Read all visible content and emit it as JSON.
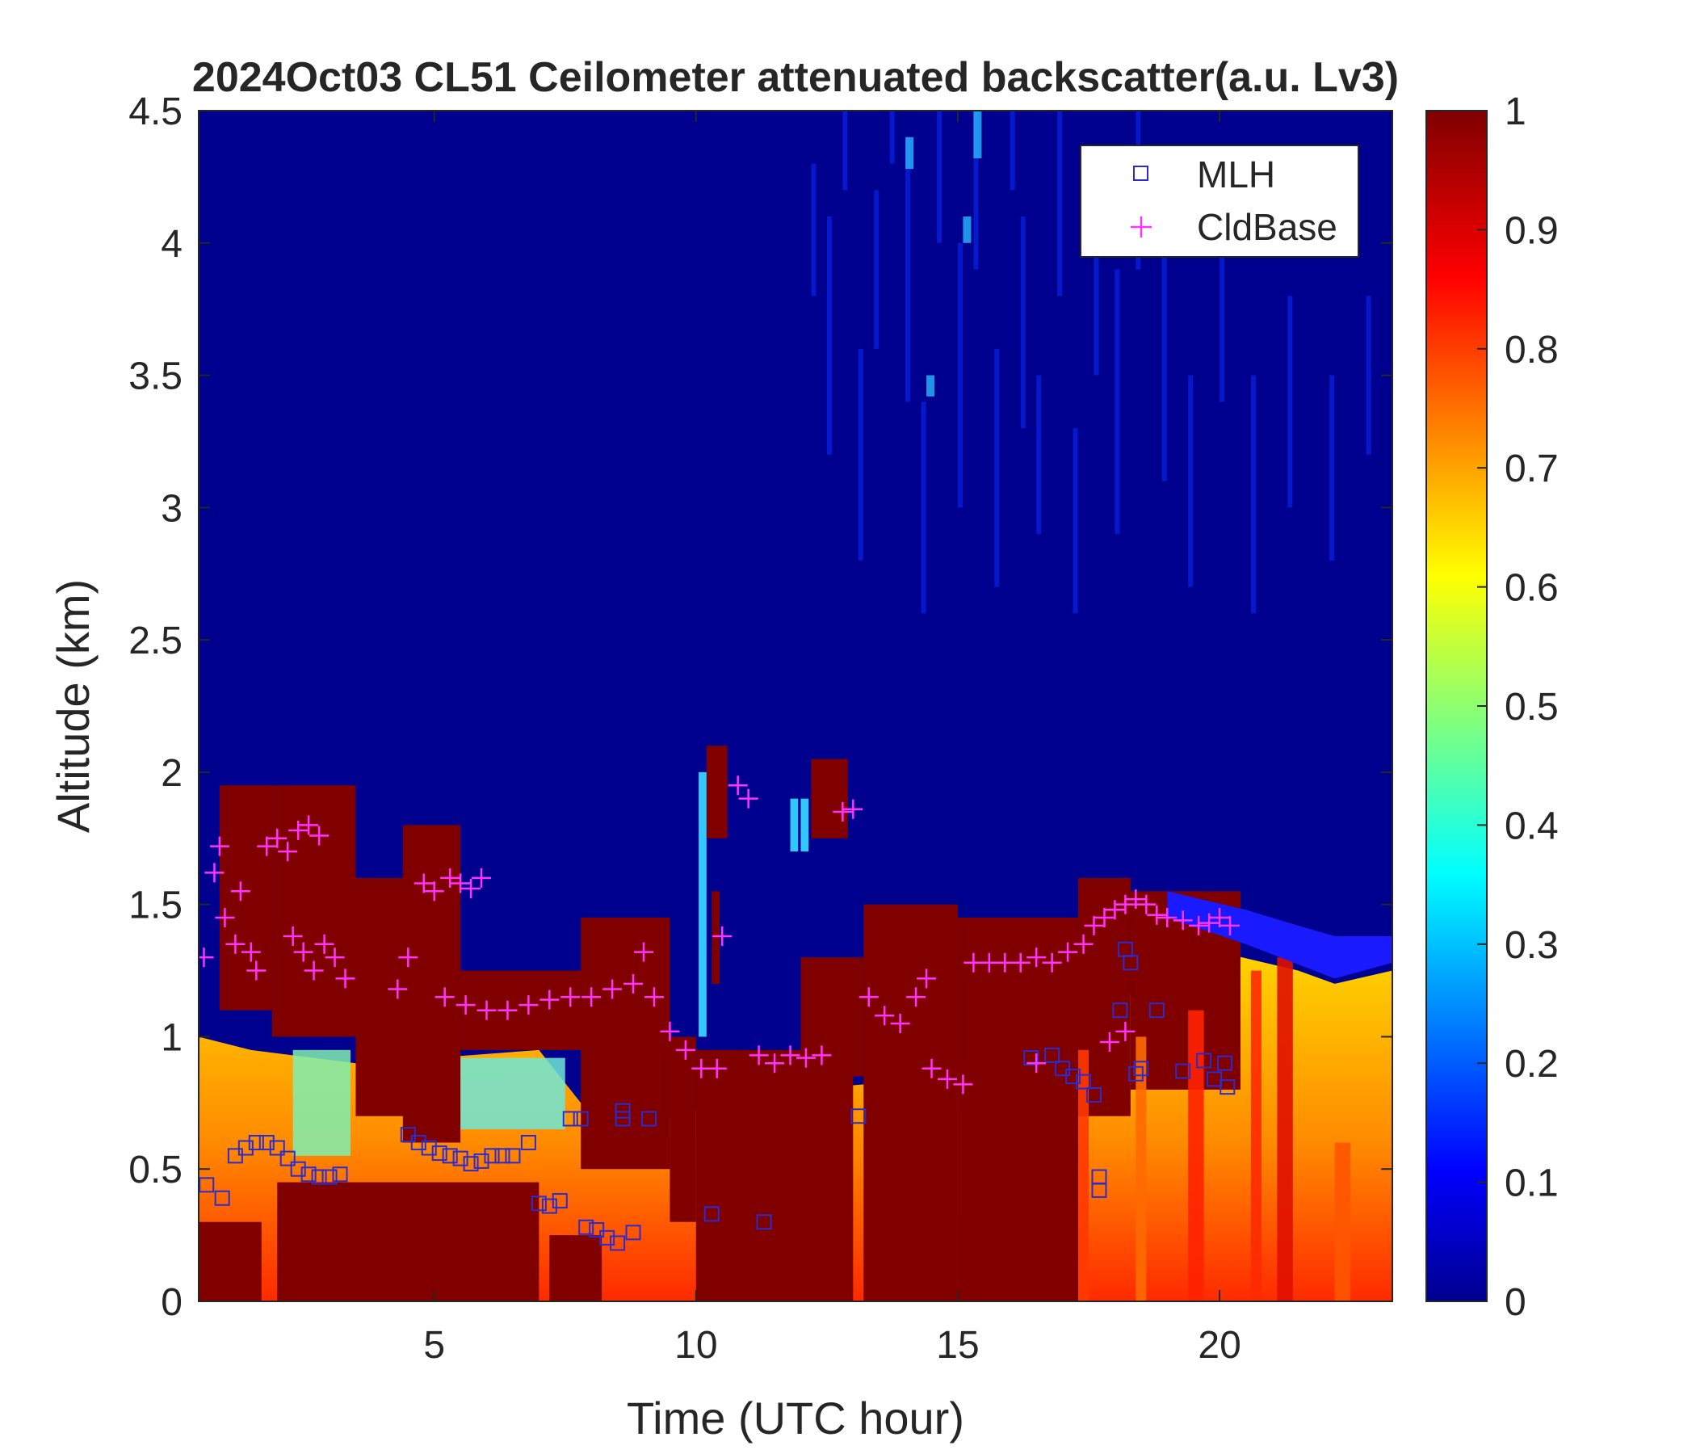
{
  "chart_data": {
    "type": "heatmap",
    "title": "2024Oct03 CL51 Ceilometer attenuated backscatter(a.u. Lv3)",
    "xlabel": "Time (UTC hour)",
    "ylabel": "Altitude (km)",
    "xlim": [
      0.5,
      23.3
    ],
    "ylim": [
      0,
      4.5
    ],
    "xticks": [
      "5",
      "10",
      "15",
      "20"
    ],
    "yticks": [
      "0",
      "0.5",
      "1",
      "1.5",
      "2",
      "2.5",
      "3",
      "3.5",
      "4",
      "4.5"
    ],
    "colorbar": {
      "colormap": "jet",
      "range": [
        0,
        1
      ],
      "ticks": [
        "0",
        "0.1",
        "0.2",
        "0.3",
        "0.4",
        "0.5",
        "0.6",
        "0.7",
        "0.8",
        "0.9",
        "1"
      ]
    },
    "legend": {
      "location": "top-right",
      "entries": [
        {
          "label": "MLH",
          "marker": "square",
          "color": "#2b2bd0"
        },
        {
          "label": "CldBase",
          "marker": "plus",
          "color": "#ff33ff"
        }
      ]
    },
    "series": [
      {
        "name": "MLH",
        "points": [
          [
            0.65,
            0.44
          ],
          [
            0.95,
            0.39
          ],
          [
            1.2,
            0.55
          ],
          [
            1.4,
            0.58
          ],
          [
            1.6,
            0.6
          ],
          [
            1.8,
            0.6
          ],
          [
            2.0,
            0.58
          ],
          [
            2.2,
            0.54
          ],
          [
            2.4,
            0.5
          ],
          [
            2.6,
            0.48
          ],
          [
            2.8,
            0.47
          ],
          [
            3.0,
            0.47
          ],
          [
            3.2,
            0.48
          ],
          [
            4.5,
            0.63
          ],
          [
            4.7,
            0.6
          ],
          [
            4.9,
            0.58
          ],
          [
            5.1,
            0.56
          ],
          [
            5.3,
            0.55
          ],
          [
            5.5,
            0.54
          ],
          [
            5.7,
            0.52
          ],
          [
            5.9,
            0.53
          ],
          [
            6.1,
            0.55
          ],
          [
            6.3,
            0.55
          ],
          [
            6.5,
            0.55
          ],
          [
            6.8,
            0.6
          ],
          [
            7.0,
            0.37
          ],
          [
            7.2,
            0.36
          ],
          [
            7.4,
            0.38
          ],
          [
            7.6,
            0.69
          ],
          [
            7.8,
            0.69
          ],
          [
            7.9,
            0.28
          ],
          [
            8.1,
            0.27
          ],
          [
            8.3,
            0.24
          ],
          [
            8.5,
            0.22
          ],
          [
            8.6,
            0.72
          ],
          [
            8.6,
            0.69
          ],
          [
            8.8,
            0.26
          ],
          [
            9.1,
            0.69
          ],
          [
            10.3,
            0.33
          ],
          [
            11.3,
            0.3
          ],
          [
            13.1,
            0.7
          ],
          [
            16.4,
            0.92
          ],
          [
            16.8,
            0.93
          ],
          [
            17.0,
            0.88
          ],
          [
            17.2,
            0.85
          ],
          [
            17.4,
            0.83
          ],
          [
            17.6,
            0.78
          ],
          [
            17.7,
            0.47
          ],
          [
            17.7,
            0.42
          ],
          [
            18.1,
            1.1
          ],
          [
            18.2,
            1.33
          ],
          [
            18.3,
            1.28
          ],
          [
            18.4,
            0.86
          ],
          [
            18.5,
            0.88
          ],
          [
            18.8,
            1.1
          ],
          [
            19.3,
            0.87
          ],
          [
            19.7,
            0.91
          ],
          [
            19.9,
            0.84
          ],
          [
            20.1,
            0.9
          ],
          [
            20.15,
            0.81
          ]
        ]
      },
      {
        "name": "CldBase",
        "points": [
          [
            0.6,
            1.3
          ],
          [
            0.8,
            1.62
          ],
          [
            0.9,
            1.72
          ],
          [
            1.0,
            1.45
          ],
          [
            1.2,
            1.35
          ],
          [
            1.3,
            1.55
          ],
          [
            1.5,
            1.32
          ],
          [
            1.6,
            1.25
          ],
          [
            1.8,
            1.72
          ],
          [
            2.0,
            1.75
          ],
          [
            2.2,
            1.7
          ],
          [
            2.4,
            1.78
          ],
          [
            2.6,
            1.8
          ],
          [
            2.8,
            1.76
          ],
          [
            2.3,
            1.38
          ],
          [
            2.5,
            1.32
          ],
          [
            2.7,
            1.25
          ],
          [
            2.9,
            1.35
          ],
          [
            3.1,
            1.3
          ],
          [
            3.3,
            1.22
          ],
          [
            4.3,
            1.18
          ],
          [
            4.5,
            1.3
          ],
          [
            4.8,
            1.58
          ],
          [
            5.0,
            1.55
          ],
          [
            5.3,
            1.6
          ],
          [
            5.5,
            1.58
          ],
          [
            5.7,
            1.56
          ],
          [
            5.9,
            1.6
          ],
          [
            5.2,
            1.15
          ],
          [
            5.6,
            1.12
          ],
          [
            6.0,
            1.1
          ],
          [
            6.4,
            1.1
          ],
          [
            6.8,
            1.12
          ],
          [
            7.2,
            1.14
          ],
          [
            7.6,
            1.15
          ],
          [
            8.0,
            1.15
          ],
          [
            8.4,
            1.18
          ],
          [
            8.8,
            1.2
          ],
          [
            9.0,
            1.32
          ],
          [
            9.2,
            1.15
          ],
          [
            9.5,
            1.02
          ],
          [
            9.8,
            0.95
          ],
          [
            10.1,
            0.88
          ],
          [
            10.4,
            0.88
          ],
          [
            10.5,
            1.38
          ],
          [
            10.8,
            1.95
          ],
          [
            11.0,
            1.9
          ],
          [
            11.2,
            0.93
          ],
          [
            11.5,
            0.9
          ],
          [
            11.8,
            0.93
          ],
          [
            12.1,
            0.92
          ],
          [
            12.4,
            0.93
          ],
          [
            12.8,
            1.85
          ],
          [
            13.0,
            1.86
          ],
          [
            13.3,
            1.15
          ],
          [
            13.6,
            1.08
          ],
          [
            13.9,
            1.05
          ],
          [
            14.2,
            1.15
          ],
          [
            14.4,
            1.22
          ],
          [
            14.5,
            0.88
          ],
          [
            14.8,
            0.84
          ],
          [
            15.1,
            0.82
          ],
          [
            15.3,
            1.28
          ],
          [
            15.6,
            1.28
          ],
          [
            15.9,
            1.28
          ],
          [
            16.2,
            1.28
          ],
          [
            16.5,
            1.3
          ],
          [
            16.8,
            1.28
          ],
          [
            17.1,
            1.32
          ],
          [
            17.4,
            1.35
          ],
          [
            17.6,
            1.42
          ],
          [
            17.8,
            1.45
          ],
          [
            18.0,
            1.48
          ],
          [
            18.2,
            1.5
          ],
          [
            18.4,
            1.52
          ],
          [
            18.6,
            1.5
          ],
          [
            18.8,
            1.46
          ],
          [
            19.0,
            1.45
          ],
          [
            19.3,
            1.44
          ],
          [
            19.6,
            1.42
          ],
          [
            19.8,
            1.43
          ],
          [
            20.0,
            1.45
          ],
          [
            20.2,
            1.42
          ],
          [
            16.5,
            0.9
          ],
          [
            17.9,
            0.98
          ],
          [
            18.2,
            1.02
          ]
        ]
      }
    ]
  }
}
